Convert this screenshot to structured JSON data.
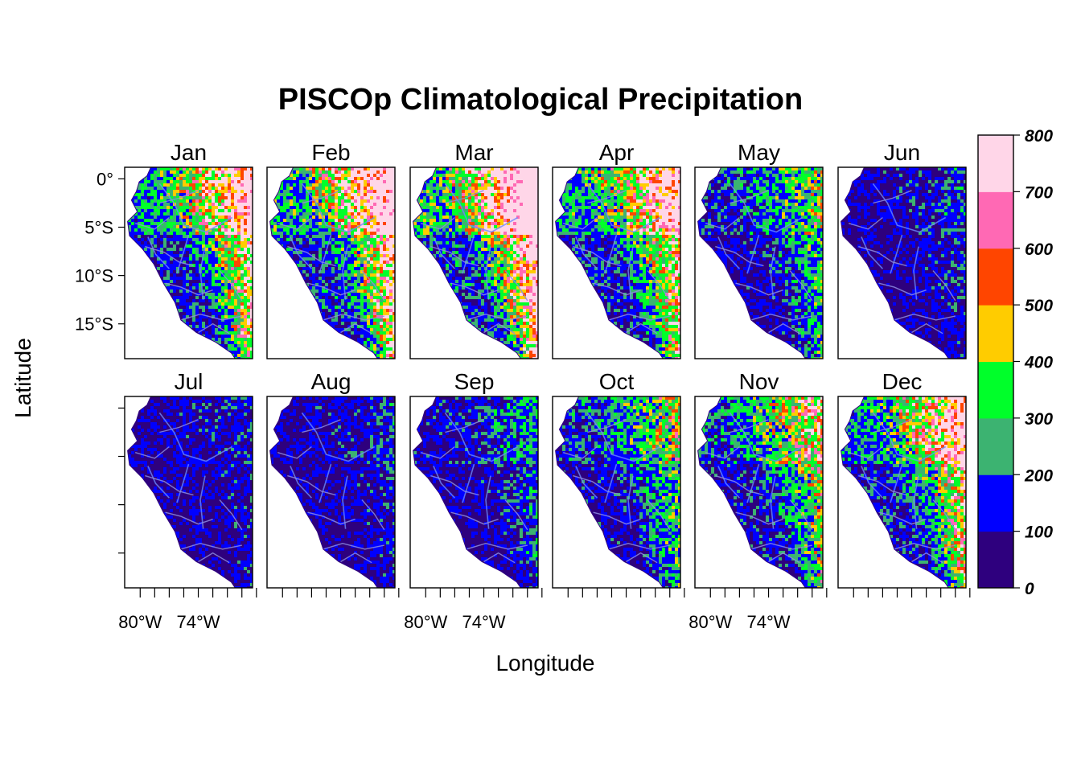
{
  "title": "PISCOp Climatological Precipitation",
  "xlabel": "Longitude",
  "ylabel": "Latitude",
  "lat_tick_labels": [
    "0°",
    "5°S",
    "10°S",
    "15°S"
  ],
  "lon_tick_labels": [
    "80°W",
    "74°W"
  ],
  "panels": [
    {
      "label": "Jan",
      "wet": 0.75
    },
    {
      "label": "Feb",
      "wet": 0.82
    },
    {
      "label": "Mar",
      "wet": 0.9
    },
    {
      "label": "Apr",
      "wet": 0.75
    },
    {
      "label": "May",
      "wet": 0.45
    },
    {
      "label": "Jun",
      "wet": 0.22
    },
    {
      "label": "Jul",
      "wet": 0.18
    },
    {
      "label": "Aug",
      "wet": 0.2
    },
    {
      "label": "Sep",
      "wet": 0.3
    },
    {
      "label": "Oct",
      "wet": 0.48
    },
    {
      "label": "Nov",
      "wet": 0.58
    },
    {
      "label": "Dec",
      "wet": 0.72
    }
  ],
  "colorkey": {
    "breaks": [
      0,
      100,
      200,
      300,
      400,
      500,
      600,
      700,
      800
    ],
    "labels": [
      "0",
      "100",
      "200",
      "300",
      "400",
      "500",
      "600",
      "700",
      "800"
    ],
    "colors": [
      "#2E007E",
      "#0000FF",
      "#3CB371",
      "#00FF2A",
      "#FFCC00",
      "#FF4500",
      "#FF69B4",
      "#FFD6E8"
    ]
  },
  "boundary_color": "#8C8CE0",
  "river_color": "#6A8AFF"
}
